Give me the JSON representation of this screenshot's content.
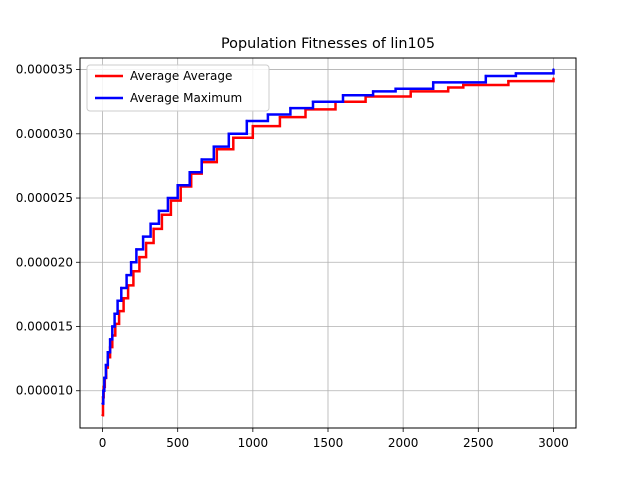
{
  "chart_data": {
    "type": "line",
    "title": "Population Fitnesses of lin105",
    "xlabel": "",
    "ylabel": "",
    "xlim": [
      -150,
      3150
    ],
    "ylim": [
      7.1e-06,
      3.59e-05
    ],
    "grid": true,
    "legend_position": "top-left",
    "x_ticks": [
      0,
      500,
      1000,
      1500,
      2000,
      2500,
      3000
    ],
    "x_tick_labels": [
      "0",
      "500",
      "1000",
      "1500",
      "2000",
      "2500",
      "3000"
    ],
    "y_ticks": [
      1e-05,
      1.5e-05,
      2e-05,
      2.5e-05,
      3e-05,
      3.5e-05
    ],
    "y_tick_labels": [
      "0.000010",
      "0.000015",
      "0.000020",
      "0.000025",
      "0.000030",
      "0.000035"
    ],
    "series": [
      {
        "name": "Average Average",
        "color": "#ff0000",
        "x": [
          0,
          3,
          8,
          15,
          24,
          35,
          50,
          65,
          85,
          110,
          140,
          170,
          205,
          245,
          290,
          340,
          395,
          455,
          520,
          590,
          660,
          760,
          870,
          1000,
          1180,
          1350,
          1550,
          1750,
          2050,
          2300,
          2400,
          2700,
          3000
        ],
        "values": [
          8.1e-06,
          9.5e-06,
          1.03e-05,
          1.1e-05,
          1.18e-05,
          1.26e-05,
          1.34e-05,
          1.43e-05,
          1.52e-05,
          1.62e-05,
          1.72e-05,
          1.82e-05,
          1.93e-05,
          2.04e-05,
          2.15e-05,
          2.26e-05,
          2.37e-05,
          2.48e-05,
          2.59e-05,
          2.69e-05,
          2.78e-05,
          2.88e-05,
          2.97e-05,
          3.06e-05,
          3.13e-05,
          3.19e-05,
          3.25e-05,
          3.29e-05,
          3.33e-05,
          3.36e-05,
          3.38e-05,
          3.41e-05,
          3.43e-05
        ]
      },
      {
        "name": "Average Maximum",
        "color": "#0000ff",
        "x": [
          0,
          5,
          12,
          22,
          35,
          50,
          65,
          80,
          100,
          125,
          160,
          190,
          225,
          270,
          320,
          375,
          435,
          500,
          580,
          660,
          740,
          840,
          960,
          1100,
          1250,
          1400,
          1600,
          1800,
          1950,
          2200,
          2550,
          2750,
          3000
        ],
        "values": [
          9e-06,
          1e-05,
          1.1e-05,
          1.2e-05,
          1.3e-05,
          1.4e-05,
          1.5e-05,
          1.6e-05,
          1.7e-05,
          1.8e-05,
          1.9e-05,
          2e-05,
          2.1e-05,
          2.2e-05,
          2.3e-05,
          2.4e-05,
          2.5e-05,
          2.6e-05,
          2.7e-05,
          2.8e-05,
          2.9e-05,
          3e-05,
          3.1e-05,
          3.15e-05,
          3.2e-05,
          3.25e-05,
          3.3e-05,
          3.33e-05,
          3.35e-05,
          3.4e-05,
          3.45e-05,
          3.47e-05,
          3.5e-05
        ]
      }
    ]
  }
}
